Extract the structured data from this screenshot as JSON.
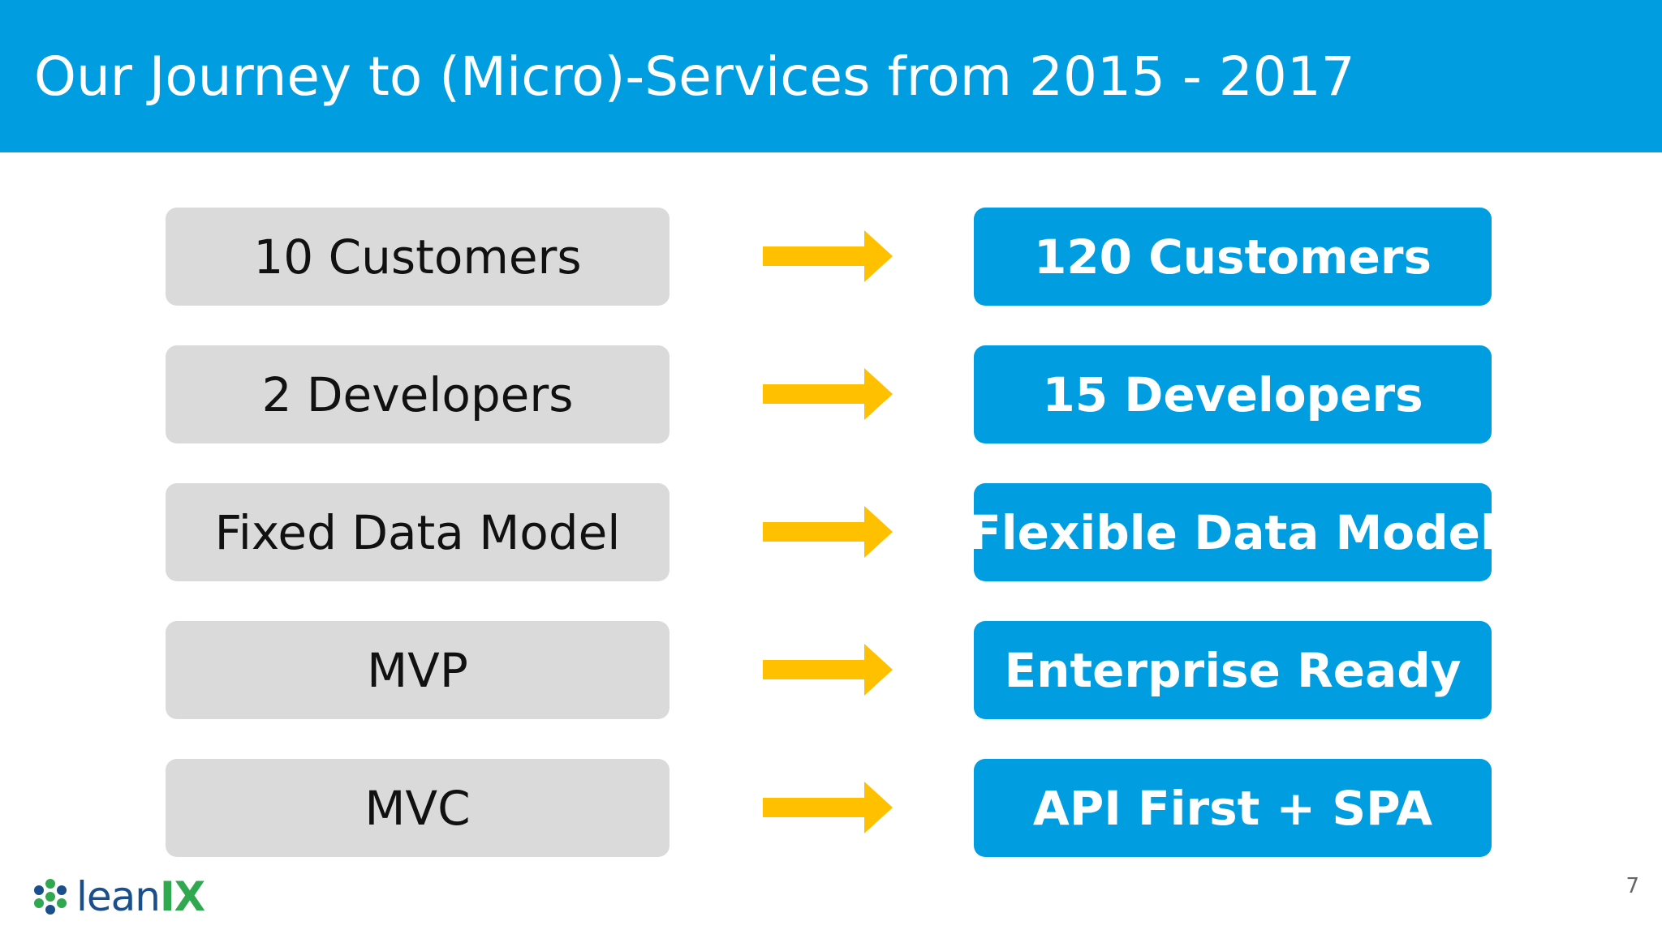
{
  "slide": {
    "title": "Our Journey to (Micro)-Services from 2015 - 2017",
    "page_number": "7"
  },
  "rows": [
    {
      "from": "10 Customers",
      "to": "120 Customers"
    },
    {
      "from": "2 Developers",
      "to": "15 Developers"
    },
    {
      "from": "Fixed Data Model",
      "to": "Flexible Data Model"
    },
    {
      "from": "MVP",
      "to": "Enterprise Ready"
    },
    {
      "from": "MVC",
      "to": "API First + SPA"
    }
  ],
  "logo": {
    "brand_part1": "lean",
    "brand_part2": "IX",
    "icon": "leanix-logo-icon"
  },
  "colors": {
    "primary_blue": "#009ee0",
    "left_box_gray": "#dadadb",
    "arrow_yellow": "#ffc000",
    "logo_blue": "#1b4f8c",
    "logo_green": "#2fa84f"
  },
  "icons": {
    "arrow": "arrow-right-icon"
  }
}
